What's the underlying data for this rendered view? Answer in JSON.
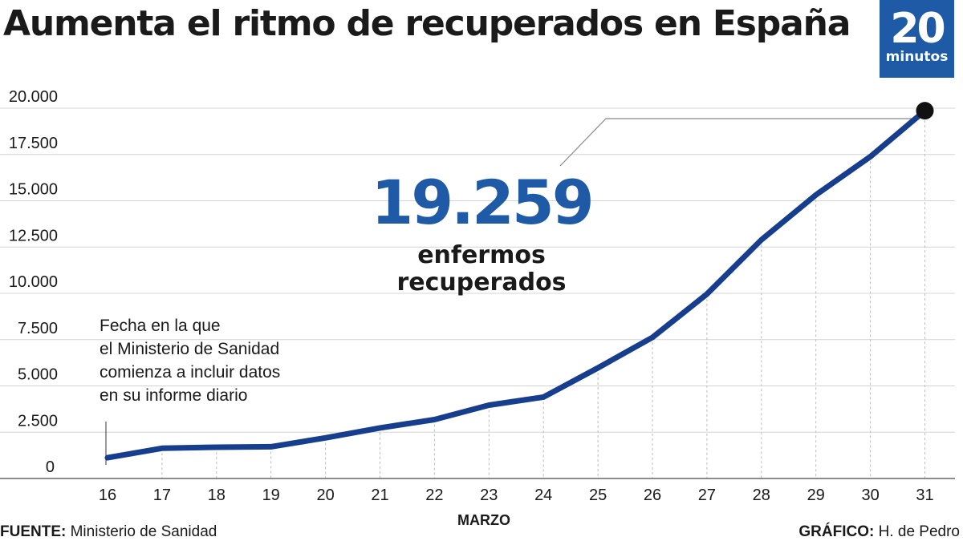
{
  "header": {
    "title": "Aumenta el ritmo de recuperados en España"
  },
  "logo": {
    "number": "20",
    "word": "minutos",
    "color": "#1f5aa6"
  },
  "highlight": {
    "value": "19.259",
    "label_line1": "enfermos",
    "label_line2": "recuperados"
  },
  "annotation": {
    "line1": "Fecha en la que",
    "line2": "el Ministerio de Sanidad",
    "line3": "comienza a incluir datos",
    "line4": "en su informe diario"
  },
  "footer": {
    "source_label": "FUENTE:",
    "source_value": "Ministerio de Sanidad",
    "credit_label": "GRÁFICO:",
    "credit_value": "H. de Pedro"
  },
  "chart_data": {
    "type": "line",
    "title": "Aumenta el ritmo de recuperados en España",
    "xlabel": "MARZO",
    "ylabel": "",
    "x": [
      "16",
      "17",
      "18",
      "19",
      "20",
      "21",
      "22",
      "23",
      "24",
      "25",
      "26",
      "27",
      "28",
      "29",
      "30",
      "31"
    ],
    "values": [
      517,
      1028,
      1081,
      1107,
      1588,
      2125,
      2575,
      3355,
      3794,
      5367,
      7015,
      9357,
      12285,
      14709,
      16780,
      19259
    ],
    "y_ticks": [
      "0",
      "2.500",
      "5.000",
      "7.500",
      "10.000",
      "12.500",
      "15.000",
      "17.500",
      "20.000"
    ],
    "ylim": [
      0,
      20000
    ],
    "grid": true,
    "line_color": "#163e8c"
  }
}
